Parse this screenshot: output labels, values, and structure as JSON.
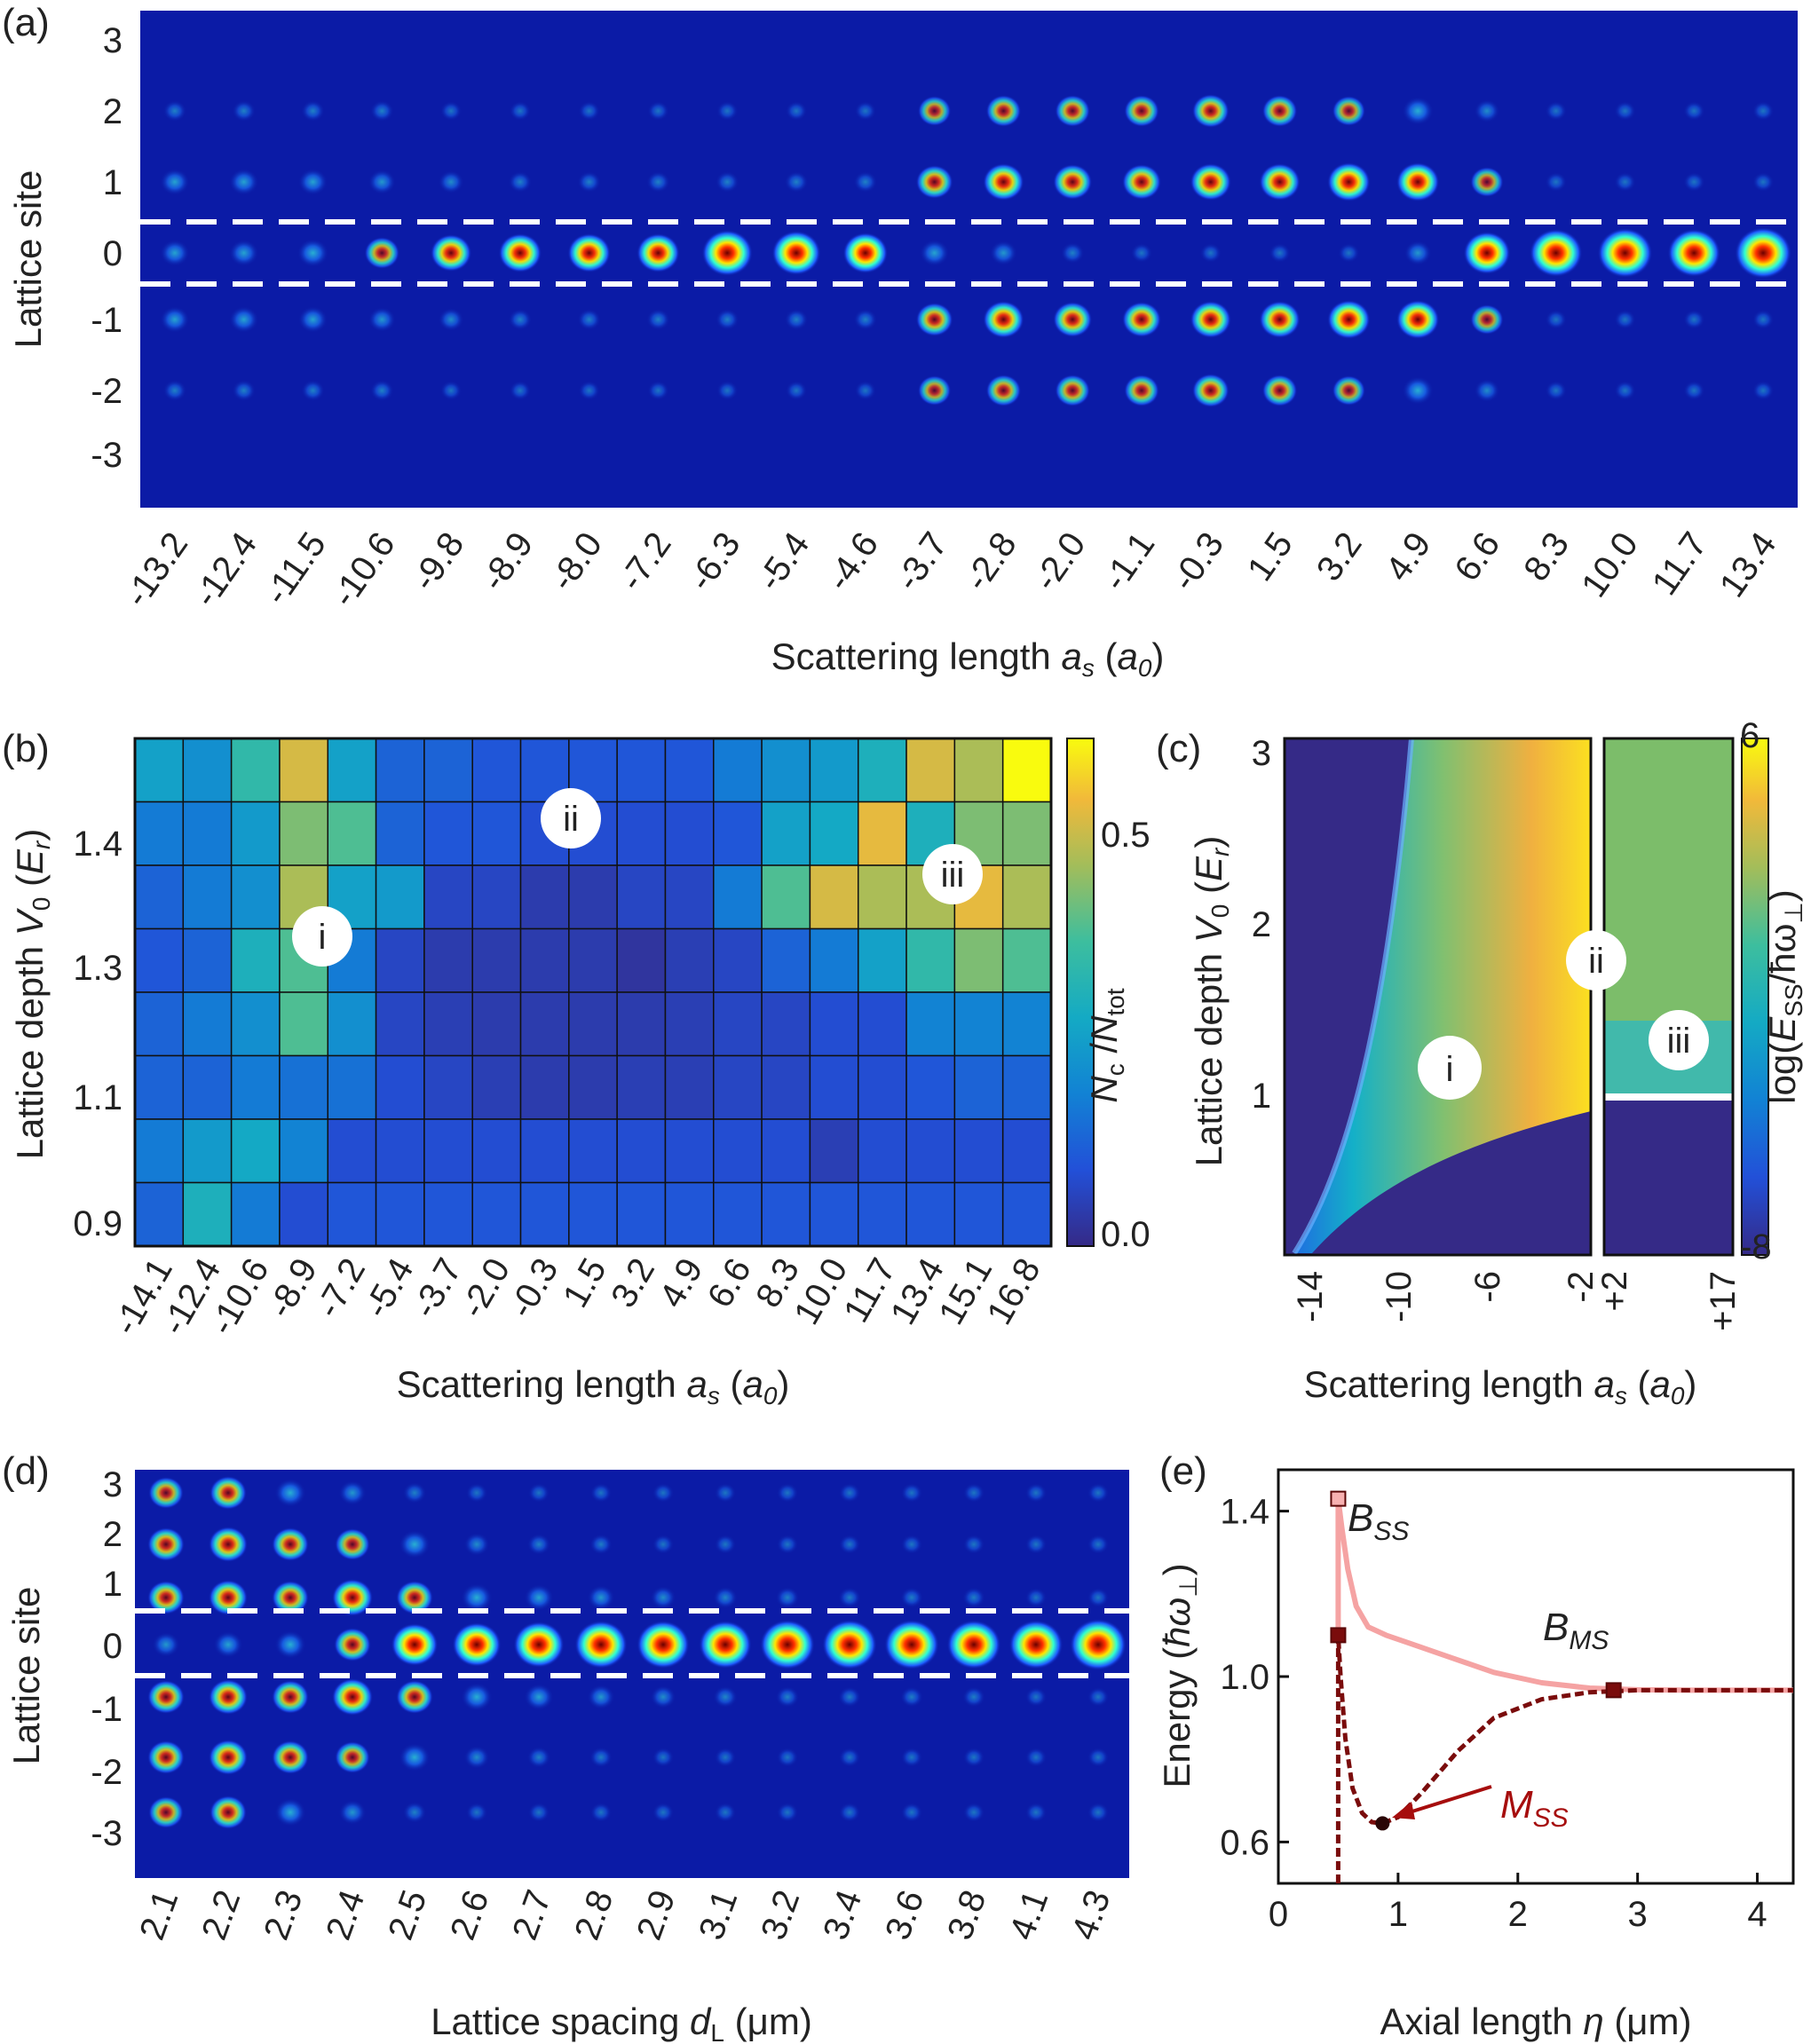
{
  "chart_data": [
    {
      "panel": "(a)",
      "type": "heatmap",
      "ylabel": "Lattice site",
      "xlabel_main": "Scattering length ",
      "xlabel_sym": "a",
      "xlabel_sub": "s",
      "xlabel_unit_open": " (",
      "xlabel_unit_sym": "a",
      "xlabel_unit_sub": "0",
      "xlabel_unit_close": ")",
      "yticks": [
        "3",
        "2",
        "1",
        "0",
        "-1",
        "-2",
        "-3"
      ],
      "categories": [
        "-13.2",
        "-12.4",
        "-11.5",
        "-10.6",
        "-9.8",
        "-8.9",
        "-8.0",
        "-7.2",
        "-6.3",
        "-5.4",
        "-4.6",
        "-3.7",
        "-2.8",
        "-2.0",
        "-1.1",
        "-0.3",
        "1.5",
        "3.2",
        "4.9",
        "6.6",
        "8.3",
        "10.0",
        "11.7",
        "13.4"
      ],
      "site_intensity_center": [
        0.25,
        0.25,
        0.3,
        0.4,
        0.55,
        0.6,
        0.6,
        0.6,
        0.8,
        0.75,
        0.65,
        0.25,
        0.2,
        0.1,
        0.05,
        0.05,
        0.05,
        0.05,
        0.2,
        0.7,
        0.85,
        0.9,
        0.85,
        0.95
      ],
      "site_intensity_pm1": [
        0.25,
        0.25,
        0.25,
        0.2,
        0.15,
        0.1,
        0.1,
        0.1,
        0.1,
        0.1,
        0.1,
        0.45,
        0.55,
        0.5,
        0.5,
        0.55,
        0.55,
        0.6,
        0.6,
        0.35,
        0.05,
        0.05,
        0.05,
        0.05
      ],
      "site_intensity_pm2": [
        0.1,
        0.1,
        0.1,
        0.1,
        0.05,
        0.05,
        0.05,
        0.05,
        0.05,
        0.05,
        0.05,
        0.35,
        0.4,
        0.4,
        0.4,
        0.45,
        0.4,
        0.35,
        0.3,
        0.15,
        0.05,
        0.05,
        0.05,
        0.05
      ],
      "dashed_lines_at_sites": [
        0.35,
        -0.55
      ]
    },
    {
      "panel": "(b)",
      "type": "heatmap",
      "ylabel_main": "Lattice depth ",
      "ylabel_sym": "V",
      "ylabel_sub": "0",
      "ylabel_unit_open": " (",
      "ylabel_unit_sym": "E",
      "ylabel_unit_sub": "r",
      "ylabel_unit_close": ")",
      "xlabel_main": "Scattering length ",
      "xlabel_sym": "a",
      "xlabel_sub": "s",
      "xlabel_unit_open": " (",
      "xlabel_unit_sym": "a",
      "xlabel_unit_sub": "0",
      "xlabel_unit_close": ")",
      "categories": [
        "-14.1",
        "-12.4",
        "-10.6",
        "-8.9",
        "-7.2",
        "-5.4",
        "-3.7",
        "-2.0",
        "-0.3",
        "1.5",
        "3.2",
        "4.9",
        "6.6",
        "8.3",
        "10.0",
        "11.7",
        "13.4",
        "15.1",
        "16.8"
      ],
      "yticks": [
        "0.9",
        "1.1",
        "1.3",
        "1.4"
      ],
      "rows_top_to_bottom": [
        [
          0.3,
          0.25,
          0.4,
          0.6,
          0.3,
          0.15,
          0.15,
          0.12,
          0.12,
          0.12,
          0.12,
          0.12,
          0.2,
          0.25,
          0.28,
          0.35,
          0.6,
          0.55,
          0.72
        ],
        [
          0.2,
          0.2,
          0.28,
          0.5,
          0.45,
          0.15,
          0.12,
          0.12,
          0.1,
          0.1,
          0.1,
          0.1,
          0.12,
          0.3,
          0.32,
          0.62,
          0.35,
          0.5,
          0.5
        ],
        [
          0.15,
          0.2,
          0.25,
          0.55,
          0.3,
          0.28,
          0.08,
          0.08,
          0.05,
          0.05,
          0.08,
          0.08,
          0.2,
          0.45,
          0.6,
          0.55,
          0.55,
          0.62,
          0.55
        ],
        [
          0.12,
          0.15,
          0.35,
          0.45,
          0.2,
          0.08,
          0.05,
          0.05,
          0.05,
          0.05,
          0.03,
          0.06,
          0.08,
          0.15,
          0.2,
          0.3,
          0.4,
          0.5,
          0.45
        ],
        [
          0.15,
          0.2,
          0.25,
          0.45,
          0.25,
          0.08,
          0.06,
          0.05,
          0.05,
          0.05,
          0.05,
          0.06,
          0.08,
          0.08,
          0.1,
          0.1,
          0.22,
          0.22,
          0.22
        ],
        [
          0.15,
          0.15,
          0.2,
          0.18,
          0.18,
          0.1,
          0.08,
          0.06,
          0.05,
          0.05,
          0.06,
          0.06,
          0.08,
          0.08,
          0.1,
          0.1,
          0.12,
          0.15,
          0.15
        ],
        [
          0.2,
          0.28,
          0.32,
          0.22,
          0.1,
          0.1,
          0.1,
          0.1,
          0.1,
          0.1,
          0.1,
          0.1,
          0.1,
          0.1,
          0.06,
          0.1,
          0.1,
          0.1,
          0.1
        ],
        [
          0.15,
          0.35,
          0.2,
          0.1,
          0.12,
          0.12,
          0.12,
          0.12,
          0.12,
          0.12,
          0.12,
          0.12,
          0.12,
          0.12,
          0.12,
          0.12,
          0.12,
          0.12,
          0.12
        ]
      ],
      "colorbar_label_main": "N",
      "colorbar_label_sub": "c",
      "colorbar_label_div": " /",
      "colorbar_label_main2": "N",
      "colorbar_label_sub2": "tot",
      "colorbar_ticks": [
        "0.5",
        "0.0"
      ],
      "region_labels": [
        "i",
        "ii",
        "iii"
      ]
    },
    {
      "panel": "(c)",
      "type": "heatmap",
      "ylabel_main": "Lattice depth ",
      "ylabel_sym": "V",
      "ylabel_sub": "0",
      "ylabel_unit_open": " (",
      "ylabel_unit_sym": "E",
      "ylabel_unit_sub": "r",
      "ylabel_unit_close": ")",
      "xlabel_main": "Scattering length ",
      "xlabel_sym": "a",
      "xlabel_sub": "s",
      "xlabel_unit_open": " (",
      "xlabel_unit_sym": "a",
      "xlabel_unit_sub": "0",
      "xlabel_unit_close": ")",
      "xticks_left": [
        "-14",
        "-10",
        "-6",
        "-2"
      ],
      "xticks_right": [
        "+2",
        "+17"
      ],
      "yticks": [
        "3",
        "2",
        "1"
      ],
      "colorbar_label_pre": "log(",
      "colorbar_label_main": "E",
      "colorbar_label_sub": "SS",
      "colorbar_label_post": "/ħω",
      "colorbar_label_sub2": "⊥",
      "colorbar_label_close": ")",
      "colorbar_ticks": [
        "6",
        "-8"
      ],
      "region_labels": [
        "i",
        "ii",
        "iii"
      ]
    },
    {
      "panel": "(d)",
      "type": "heatmap",
      "ylabel": "Lattice site",
      "xlabel_main": "Lattice spacing ",
      "xlabel_sym": "d",
      "xlabel_sub": "L",
      "xlabel_unit": " (μm)",
      "yticks": [
        "3",
        "2",
        "1",
        "0",
        "-1",
        "-2",
        "-3"
      ],
      "categories": [
        "2.1",
        "2.2",
        "2.3",
        "2.4",
        "2.5",
        "2.6",
        "2.7",
        "2.8",
        "2.9",
        "3.1",
        "3.2",
        "3.4",
        "3.6",
        "3.8",
        "4.1",
        "4.3"
      ],
      "site_intensity_center": [
        0.2,
        0.25,
        0.3,
        0.45,
        0.7,
        0.75,
        0.8,
        0.85,
        0.85,
        0.85,
        0.9,
        0.9,
        0.9,
        0.88,
        0.88,
        0.95
      ],
      "site_intensity_pm1": [
        0.45,
        0.5,
        0.45,
        0.55,
        0.45,
        0.3,
        0.25,
        0.2,
        0.15,
        0.12,
        0.1,
        0.08,
        0.08,
        0.08,
        0.05,
        0.05
      ],
      "site_intensity_pm2": [
        0.45,
        0.5,
        0.45,
        0.4,
        0.3,
        0.15,
        0.1,
        0.08,
        0.05,
        0.05,
        0.05,
        0.05,
        0.05,
        0.05,
        0.05,
        0.05
      ],
      "site_intensity_pm3": [
        0.4,
        0.45,
        0.3,
        0.2,
        0.1,
        0.05,
        0.05,
        0.05,
        0.05,
        0.05,
        0.05,
        0.05,
        0.05,
        0.05,
        0.05,
        0.05
      ],
      "dashed_lines_at_sites": [
        0.5,
        -0.5
      ]
    },
    {
      "panel": "(e)",
      "type": "line",
      "xlabel_main": "Axial length ",
      "xlabel_sym": "η",
      "xlabel_unit": " (μm)",
      "ylabel_main": "Energy (",
      "ylabel_sym": "ħω",
      "ylabel_sub": "⊥",
      "ylabel_close": ")",
      "xlim": [
        0,
        4.3
      ],
      "ylim": [
        0.5,
        1.5
      ],
      "xticks": [
        0,
        1,
        2,
        3,
        4
      ],
      "xtick_labels": [
        "0",
        "1",
        "2",
        "3",
        "4"
      ],
      "yticks": [
        0.6,
        1.0,
        1.4
      ],
      "ytick_labels": [
        "0.6",
        "1.0",
        "1.4"
      ],
      "series": [
        {
          "x": [
            0.5,
            0.5,
            0.53,
            0.58,
            0.65,
            0.75,
            0.9,
            1.1,
            1.4,
            1.8,
            2.2,
            2.6,
            3.0,
            3.5,
            4.0,
            4.3
          ],
          "y": [
            1.1,
            1.43,
            1.36,
            1.26,
            1.17,
            1.12,
            1.1,
            1.08,
            1.05,
            1.01,
            0.985,
            0.972,
            0.968,
            0.967,
            0.967,
            0.967
          ],
          "color": "#f5a3a3"
        },
        {
          "x": [
            0.5,
            0.5,
            0.52,
            0.56,
            0.62,
            0.7,
            0.78,
            0.87,
            1.0,
            1.2,
            1.5,
            1.8,
            2.2,
            2.6,
            3.0,
            3.5,
            4.0,
            4.3
          ],
          "y": [
            0.5,
            1.1,
            1.0,
            0.85,
            0.73,
            0.67,
            0.648,
            0.645,
            0.66,
            0.72,
            0.82,
            0.9,
            0.945,
            0.962,
            0.967,
            0.967,
            0.967,
            0.967
          ],
          "color": "#7a0c0c"
        }
      ],
      "markers": [
        {
          "x": 0.5,
          "y": 1.43,
          "color": "#f7b1b1",
          "shape": "square"
        },
        {
          "x": 0.5,
          "y": 1.1,
          "color": "#7a0c0c",
          "shape": "square"
        },
        {
          "x": 2.8,
          "y": 0.967,
          "color": "#7a0c0c",
          "shape": "square"
        },
        {
          "x": 0.87,
          "y": 0.645,
          "color": "#2a0606",
          "shape": "circle"
        }
      ],
      "annotations": [
        {
          "main": "B",
          "sub": "SS"
        },
        {
          "main": "B",
          "sub": "MS"
        },
        {
          "main": "M",
          "sub": "SS"
        }
      ]
    }
  ]
}
